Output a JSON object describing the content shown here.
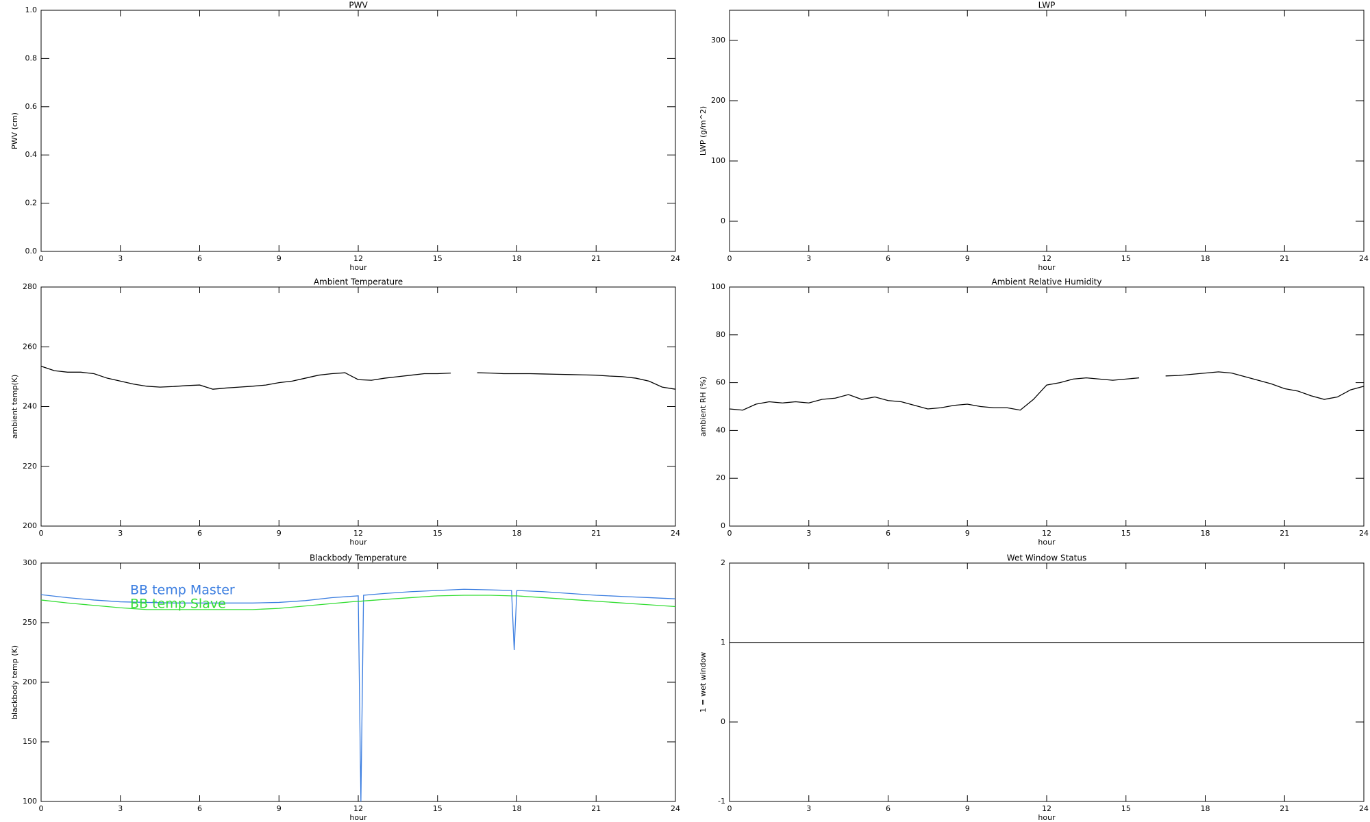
{
  "chart_data": [
    {
      "type": "line",
      "title": "PWV",
      "xlabel": "hour",
      "ylabel": "PWV (cm)",
      "xlim": [
        0,
        24
      ],
      "xticks": [
        0,
        3,
        6,
        9,
        12,
        15,
        18,
        21,
        24
      ],
      "ylim": [
        0,
        1
      ],
      "yticks": [
        {
          "value": 0,
          "label": "0.0"
        },
        0.2,
        0.4,
        0.6,
        0.8,
        {
          "value": 1,
          "label": "1.0"
        }
      ]
    },
    {
      "type": "line",
      "title": "LWP",
      "xlabel": "hour",
      "ylabel": "LWP (g/m^2)",
      "xlim": [
        0,
        24
      ],
      "xticks": [
        0,
        3,
        6,
        9,
        12,
        15,
        18,
        21,
        24
      ],
      "ylim": [
        -50,
        350
      ],
      "yticks": [
        0,
        100,
        200,
        300
      ]
    },
    {
      "type": "line",
      "title": "Ambient Temperature",
      "xlabel": "hour",
      "ylabel": "ambient temp(K)",
      "xlim": [
        0,
        24
      ],
      "xticks": [
        0,
        3,
        6,
        9,
        12,
        15,
        18,
        21,
        24
      ],
      "ylim": [
        200,
        280
      ],
      "yticks": [
        200,
        220,
        240,
        260,
        280
      ],
      "x": [
        0,
        0.5,
        1,
        1.5,
        2,
        2.5,
        3,
        3.5,
        4,
        4.5,
        5,
        5.5,
        6,
        6.5,
        7,
        7.5,
        8,
        8.5,
        9,
        9.5,
        10,
        10.5,
        11,
        11.5,
        12,
        12.5,
        13,
        13.5,
        14,
        14.5,
        15,
        15.5,
        16,
        16.5,
        17,
        17.5,
        18,
        18.5,
        19,
        19.5,
        20,
        20.5,
        21,
        21.5,
        22,
        22.5,
        23,
        23.5,
        24
      ],
      "series": [
        {
          "color": "#000000",
          "values": [
            253.5,
            252,
            251.5,
            251.5,
            251,
            249.5,
            248.5,
            247.5,
            246.8,
            246.5,
            246.7,
            247,
            247.2,
            245.8,
            246.2,
            246.5,
            246.8,
            247.2,
            248,
            248.5,
            249.5,
            250.5,
            251,
            251.3,
            249,
            248.8,
            249.5,
            250,
            250.5,
            251,
            251,
            251.2,
            null,
            251.3,
            251.2,
            251,
            251,
            251,
            250.9,
            250.8,
            250.7,
            250.6,
            250.5,
            250.2,
            250,
            249.5,
            248.5,
            246.5,
            245.8
          ]
        }
      ]
    },
    {
      "type": "line",
      "title": "Ambient Relative Humidity",
      "xlabel": "hour",
      "ylabel": "ambient RH (%)",
      "xlim": [
        0,
        24
      ],
      "xticks": [
        0,
        3,
        6,
        9,
        12,
        15,
        18,
        21,
        24
      ],
      "ylim": [
        0,
        100
      ],
      "yticks": [
        0,
        20,
        40,
        60,
        80,
        100
      ],
      "x": [
        0,
        0.5,
        1,
        1.5,
        2,
        2.5,
        3,
        3.5,
        4,
        4.5,
        5,
        5.5,
        6,
        6.5,
        7,
        7.5,
        8,
        8.5,
        9,
        9.5,
        10,
        10.5,
        11,
        11.5,
        12,
        12.5,
        13,
        13.5,
        14,
        14.5,
        15,
        15.5,
        16,
        16.5,
        17,
        17.5,
        18,
        18.5,
        19,
        19.5,
        20,
        20.5,
        21,
        21.5,
        22,
        22.5,
        23,
        23.5,
        24
      ],
      "series": [
        {
          "color": "#000000",
          "values": [
            49,
            48.5,
            51,
            52,
            51.5,
            52,
            51.5,
            53,
            53.5,
            55,
            53,
            54,
            52.5,
            52,
            50.5,
            49,
            49.5,
            50.5,
            51,
            50,
            49.5,
            49.5,
            48.5,
            53,
            59,
            60,
            61.5,
            62,
            61.5,
            61,
            61.5,
            62,
            null,
            62.8,
            63,
            63.5,
            64,
            64.5,
            64,
            62.5,
            61,
            59.5,
            57.5,
            56.5,
            54.5,
            53,
            54,
            57,
            58.5
          ]
        }
      ]
    },
    {
      "type": "line",
      "title": "Blackbody Temperature",
      "xlabel": "hour",
      "ylabel": "blackbody temp (K)",
      "xlim": [
        0,
        24
      ],
      "xticks": [
        0,
        3,
        6,
        9,
        12,
        15,
        18,
        21,
        24
      ],
      "ylim": [
        100,
        300
      ],
      "yticks": [
        100,
        150,
        200,
        250,
        300
      ],
      "legend": "upper-left",
      "x": [
        0,
        1,
        2,
        3,
        4,
        5,
        6,
        7,
        8,
        9,
        10,
        11,
        12,
        12.1,
        12.2,
        13,
        14,
        15,
        16,
        17,
        17.8,
        17.9,
        18,
        19,
        20,
        21,
        22,
        23,
        24
      ],
      "series": [
        {
          "name": "BB temp Master",
          "color": "#3a7de0",
          "values": [
            273.5,
            271,
            269,
            267.5,
            267,
            266.5,
            266.5,
            266.5,
            266.5,
            267,
            268.5,
            271,
            272.5,
            100,
            273,
            274.5,
            276,
            277,
            278,
            277.5,
            277,
            227,
            277,
            276,
            274.5,
            273,
            272,
            271,
            270
          ]
        },
        {
          "name": "BB temp Slave",
          "color": "#33dd33",
          "values": [
            269,
            266.5,
            264.5,
            262.5,
            261,
            261,
            261,
            261,
            261,
            262,
            264,
            266,
            268,
            268,
            268.2,
            269.5,
            271,
            272.5,
            273,
            273,
            272.5,
            272.5,
            272.5,
            271,
            269.5,
            268,
            266.5,
            265,
            263.5
          ]
        }
      ]
    },
    {
      "type": "line",
      "title": "Wet Window Status",
      "xlabel": "hour",
      "ylabel": "1 = wet window",
      "xlim": [
        0,
        24
      ],
      "xticks": [
        0,
        3,
        6,
        9,
        12,
        15,
        18,
        21,
        24
      ],
      "ylim": [
        -1,
        2
      ],
      "yticks": [
        -1,
        0,
        1,
        2
      ],
      "x": [
        0,
        24
      ],
      "series": [
        {
          "color": "#000000",
          "values": [
            1,
            1
          ]
        }
      ]
    }
  ]
}
